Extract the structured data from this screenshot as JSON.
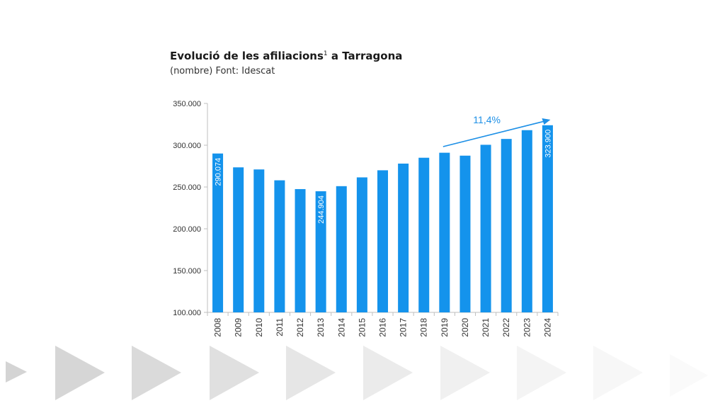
{
  "title": {
    "main": "Evolució de les afiliacions",
    "superscript": "1",
    "suffix": " a Tarragona"
  },
  "subtitle": "(nombre) Font: Idescat",
  "colors": {
    "bar": "#1493ec",
    "axis": "#bfbfbf",
    "text": "#333333",
    "accent": "#1e90e6"
  },
  "chart_data": {
    "type": "bar",
    "categories": [
      "2008",
      "2009",
      "2010",
      "2011",
      "2012",
      "2013",
      "2014",
      "2015",
      "2016",
      "2017",
      "2018",
      "2019",
      "2020",
      "2021",
      "2022",
      "2023",
      "2024"
    ],
    "values": [
      290074,
      273500,
      271000,
      258000,
      247500,
      244904,
      251000,
      261500,
      270000,
      278000,
      285000,
      291000,
      287500,
      300500,
      307500,
      318000,
      323900
    ],
    "ylim": [
      100000,
      350000
    ],
    "yticks": [
      "100.000",
      "150.000",
      "200.000",
      "250.000",
      "300.000",
      "350.000"
    ],
    "ytick_values": [
      100000,
      150000,
      200000,
      250000,
      300000,
      350000
    ],
    "data_labels": [
      {
        "category": "2008",
        "text": "290.074"
      },
      {
        "category": "2013",
        "text": "244.904"
      },
      {
        "category": "2024",
        "text": "323.900"
      }
    ],
    "annotation": {
      "text": "11,4%",
      "from": "2019",
      "to": "2024"
    },
    "grid": false,
    "legend": "none"
  }
}
